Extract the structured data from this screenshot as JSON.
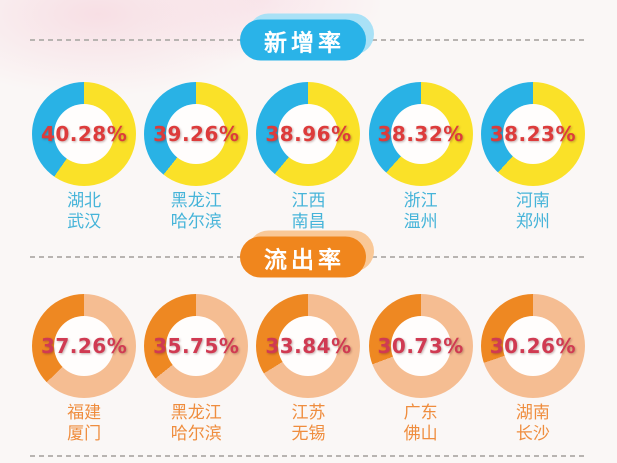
{
  "page": {
    "background": "#faf7f6",
    "divider_color": "#b8b4b1",
    "donut_hole_color": "#fffdfc"
  },
  "chart_data": [
    {
      "type": "pie",
      "subtype": "donut-multiples",
      "title": "新增率",
      "legend_position": "none",
      "badge_color": "#2ab3e8",
      "badge_echo_color": "#a9e1f6",
      "segment_color": "#29b2e5",
      "remainder_color": "#fae128",
      "pct_color": "#dd3b3b",
      "label_color": "#46b4d9",
      "items": [
        {
          "value": 40.28,
          "pct": "40.28%",
          "region": "湖北",
          "city": "武汉"
        },
        {
          "value": 39.26,
          "pct": "39.26%",
          "region": "黑龙江",
          "city": "哈尔滨"
        },
        {
          "value": 38.96,
          "pct": "38.96%",
          "region": "江西",
          "city": "南昌"
        },
        {
          "value": 38.32,
          "pct": "38.32%",
          "region": "浙江",
          "city": "温州"
        },
        {
          "value": 38.23,
          "pct": "38.23%",
          "region": "河南",
          "city": "郑州"
        }
      ]
    },
    {
      "type": "pie",
      "subtype": "donut-multiples",
      "title": "流出率",
      "legend_position": "none",
      "badge_color": "#f0861d",
      "badge_echo_color": "#f9c897",
      "segment_color": "#ee8822",
      "remainder_color": "#f5bd92",
      "pct_color": "#d03a52",
      "label_color": "#ef8d3e",
      "items": [
        {
          "value": 37.26,
          "pct": "37.26%",
          "region": "福建",
          "city": "厦门"
        },
        {
          "value": 35.75,
          "pct": "35.75%",
          "region": "黑龙江",
          "city": "哈尔滨"
        },
        {
          "value": 33.84,
          "pct": "33.84%",
          "region": "江苏",
          "city": "无锡"
        },
        {
          "value": 30.73,
          "pct": "30.73%",
          "region": "广东",
          "city": "佛山"
        },
        {
          "value": 30.26,
          "pct": "30.26%",
          "region": "湖南",
          "city": "长沙"
        }
      ]
    }
  ]
}
